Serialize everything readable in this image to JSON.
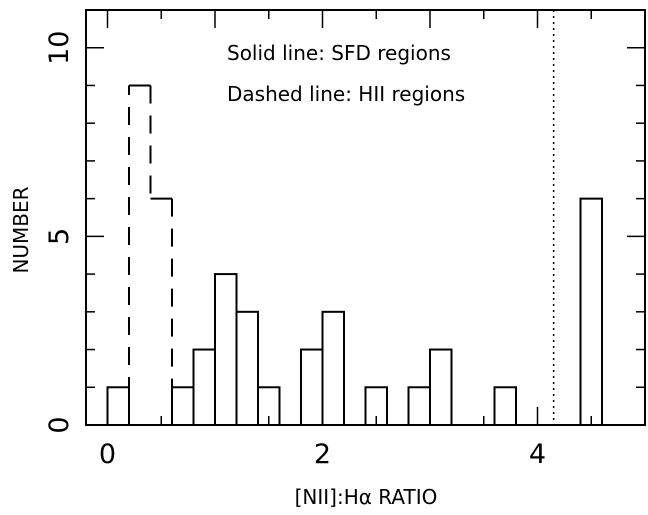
{
  "chart_data": {
    "type": "histogram",
    "xlabel": "[NII]:Hα RATIO",
    "ylabel": "NUMBER",
    "xlim": [
      -0.2,
      5.0
    ],
    "ylim": [
      0,
      11
    ],
    "x_ticks": [
      0,
      2,
      4
    ],
    "y_ticks": [
      0,
      5,
      10
    ],
    "bin_width": 0.2,
    "annotations": [
      "Solid line: SFD regions",
      "Dashed line: HII regions"
    ],
    "reference_line": {
      "x": 4.15,
      "style": "dotted"
    },
    "series": [
      {
        "style": "solid",
        "bins": [
          {
            "x0": 0.0,
            "x1": 0.2,
            "count": 1
          },
          {
            "x0": 0.6,
            "x1": 0.8,
            "count": 1
          },
          {
            "x0": 0.8,
            "x1": 1.0,
            "count": 2
          },
          {
            "x0": 1.0,
            "x1": 1.2,
            "count": 4
          },
          {
            "x0": 1.2,
            "x1": 1.4,
            "count": 3
          },
          {
            "x0": 1.4,
            "x1": 1.6,
            "count": 1
          },
          {
            "x0": 1.8,
            "x1": 2.0,
            "count": 2
          },
          {
            "x0": 2.0,
            "x1": 2.2,
            "count": 3
          },
          {
            "x0": 2.4,
            "x1": 2.6,
            "count": 1
          },
          {
            "x0": 2.8,
            "x1": 3.0,
            "count": 1
          },
          {
            "x0": 3.0,
            "x1": 3.2,
            "count": 2
          },
          {
            "x0": 3.6,
            "x1": 3.8,
            "count": 1
          },
          {
            "x0": 4.4,
            "x1": 4.6,
            "count": 6
          }
        ]
      },
      {
        "style": "dashed",
        "bins": [
          {
            "x0": 0.2,
            "x1": 0.4,
            "count": 9
          },
          {
            "x0": 0.4,
            "x1": 0.6,
            "count": 6
          }
        ]
      }
    ]
  }
}
